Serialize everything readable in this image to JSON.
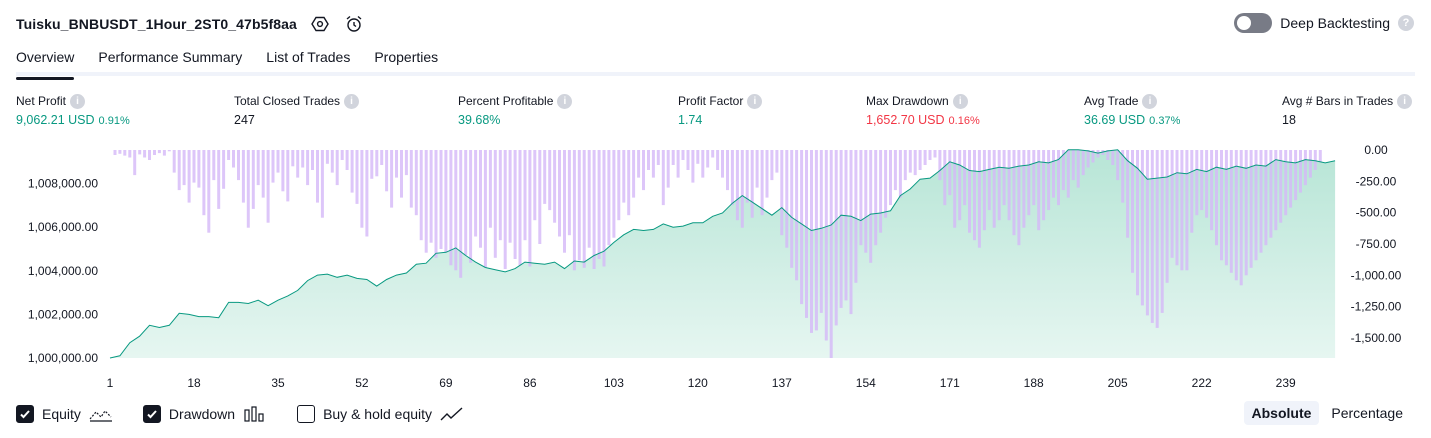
{
  "header": {
    "strategy_name": "Tuisku_BNBUSDT_1Hour_2ST0_47b5f8aa",
    "settings_icon": "settings-hex-icon",
    "alert_icon": "alarm-clock-add-icon",
    "deep_backtesting_label": "Deep Backtesting",
    "deep_backtesting_enabled": false,
    "help_glyph": "?"
  },
  "tabs": [
    {
      "label": "Overview",
      "active": true
    },
    {
      "label": "Performance Summary",
      "active": false
    },
    {
      "label": "List of Trades",
      "active": false
    },
    {
      "label": "Properties",
      "active": false
    }
  ],
  "metrics": [
    {
      "label": "Net Profit",
      "value": "9,062.21 USD",
      "sub": "0.91%",
      "tone": "pos"
    },
    {
      "label": "Total Closed Trades",
      "value": "247",
      "sub": "",
      "tone": "neu"
    },
    {
      "label": "Percent Profitable",
      "value": "39.68%",
      "sub": "",
      "tone": "pos"
    },
    {
      "label": "Profit Factor",
      "value": "1.74",
      "sub": "",
      "tone": "pos"
    },
    {
      "label": "Max Drawdown",
      "value": "1,652.70 USD",
      "sub": "0.16%",
      "tone": "neg"
    },
    {
      "label": "Avg Trade",
      "value": "36.69 USD",
      "sub": "0.37%",
      "tone": "pos"
    },
    {
      "label": "Avg # Bars in Trades",
      "value": "18",
      "sub": "",
      "tone": "neu"
    }
  ],
  "info_glyph": "i",
  "colors": {
    "equity_line": "#089981",
    "equity_fill": "#cfeee4",
    "drawdown_bar": "#d4b8f7",
    "positive": "#089981",
    "negative": "#f23645"
  },
  "chart_data": {
    "type": "area",
    "x_ticks": [
      "1",
      "18",
      "35",
      "52",
      "69",
      "86",
      "103",
      "120",
      "137",
      "154",
      "171",
      "188",
      "205",
      "222",
      "239"
    ],
    "x_range": [
      1,
      250
    ],
    "left_axis": {
      "ticks": [
        "1,008,000.00",
        "1,006,000.00",
        "1,004,000.00",
        "1,002,000.00",
        "1,000,000.00"
      ],
      "tick_values": [
        1008000,
        1006000,
        1004000,
        1002000,
        1000000
      ],
      "range": [
        1000000,
        1009540
      ]
    },
    "right_axis": {
      "ticks": [
        "0.00",
        "-250.00",
        "-500.00",
        "-750.00",
        "-1,000.00",
        "-1,250.00",
        "-1,500.00"
      ],
      "tick_values": [
        0,
        -250,
        -500,
        -750,
        -1000,
        -1250,
        -1500
      ],
      "range": [
        -1660,
        0
      ]
    },
    "series": [
      {
        "name": "Equity",
        "type": "area",
        "points": [
          [
            1,
            1000000
          ],
          [
            3,
            1000100
          ],
          [
            5,
            1000700
          ],
          [
            7,
            1001000
          ],
          [
            9,
            1001500
          ],
          [
            11,
            1001400
          ],
          [
            13,
            1001500
          ],
          [
            15,
            1002050
          ],
          [
            17,
            1002000
          ],
          [
            19,
            1001900
          ],
          [
            21,
            1001900
          ],
          [
            23,
            1001850
          ],
          [
            25,
            1002550
          ],
          [
            27,
            1002550
          ],
          [
            29,
            1002500
          ],
          [
            31,
            1002650
          ],
          [
            33,
            1002400
          ],
          [
            35,
            1002650
          ],
          [
            37,
            1002850
          ],
          [
            39,
            1003100
          ],
          [
            41,
            1003550
          ],
          [
            43,
            1003800
          ],
          [
            45,
            1003850
          ],
          [
            47,
            1003700
          ],
          [
            49,
            1003800
          ],
          [
            51,
            1003650
          ],
          [
            53,
            1003600
          ],
          [
            55,
            1003300
          ],
          [
            57,
            1003600
          ],
          [
            59,
            1003800
          ],
          [
            61,
            1003900
          ],
          [
            63,
            1004300
          ],
          [
            65,
            1004350
          ],
          [
            67,
            1004800
          ],
          [
            69,
            1004850
          ],
          [
            71,
            1005050
          ],
          [
            73,
            1004700
          ],
          [
            75,
            1004400
          ],
          [
            77,
            1004150
          ],
          [
            79,
            1004050
          ],
          [
            81,
            1003950
          ],
          [
            83,
            1004100
          ],
          [
            85,
            1004400
          ],
          [
            87,
            1004350
          ],
          [
            89,
            1004300
          ],
          [
            91,
            1004400
          ],
          [
            93,
            1004100
          ],
          [
            95,
            1004450
          ],
          [
            97,
            1004400
          ],
          [
            99,
            1004700
          ],
          [
            101,
            1004900
          ],
          [
            103,
            1005300
          ],
          [
            105,
            1005650
          ],
          [
            107,
            1005900
          ],
          [
            109,
            1005850
          ],
          [
            111,
            1005900
          ],
          [
            113,
            1006150
          ],
          [
            115,
            1006000
          ],
          [
            117,
            1006050
          ],
          [
            119,
            1006200
          ],
          [
            121,
            1006200
          ],
          [
            123,
            1006500
          ],
          [
            125,
            1006650
          ],
          [
            127,
            1007100
          ],
          [
            129,
            1007450
          ],
          [
            131,
            1007150
          ],
          [
            133,
            1006850
          ],
          [
            135,
            1006550
          ],
          [
            137,
            1006900
          ],
          [
            139,
            1006450
          ],
          [
            141,
            1006150
          ],
          [
            143,
            1005850
          ],
          [
            145,
            1005950
          ],
          [
            147,
            1006100
          ],
          [
            149,
            1006550
          ],
          [
            151,
            1006500
          ],
          [
            153,
            1006300
          ],
          [
            155,
            1006600
          ],
          [
            157,
            1006650
          ],
          [
            159,
            1006750
          ],
          [
            161,
            1007450
          ],
          [
            163,
            1007750
          ],
          [
            165,
            1008200
          ],
          [
            167,
            1008250
          ],
          [
            169,
            1008600
          ],
          [
            171,
            1009000
          ],
          [
            173,
            1008850
          ],
          [
            175,
            1008600
          ],
          [
            177,
            1008550
          ],
          [
            179,
            1008650
          ],
          [
            181,
            1008750
          ],
          [
            183,
            1008700
          ],
          [
            185,
            1008800
          ],
          [
            187,
            1008850
          ],
          [
            189,
            1009000
          ],
          [
            191,
            1008950
          ],
          [
            193,
            1009100
          ],
          [
            195,
            1009550
          ],
          [
            197,
            1009550
          ],
          [
            199,
            1009500
          ],
          [
            201,
            1009400
          ],
          [
            203,
            1009500
          ],
          [
            205,
            1009550
          ],
          [
            207,
            1009050
          ],
          [
            209,
            1008700
          ],
          [
            211,
            1008200
          ],
          [
            213,
            1008250
          ],
          [
            215,
            1008300
          ],
          [
            217,
            1008500
          ],
          [
            219,
            1008450
          ],
          [
            221,
            1008650
          ],
          [
            223,
            1008550
          ],
          [
            225,
            1008750
          ],
          [
            227,
            1008650
          ],
          [
            229,
            1008800
          ],
          [
            231,
            1008700
          ],
          [
            233,
            1008850
          ],
          [
            235,
            1008800
          ],
          [
            237,
            1009100
          ],
          [
            239,
            1009000
          ],
          [
            241,
            1008950
          ],
          [
            243,
            1009100
          ],
          [
            245,
            1009050
          ],
          [
            247,
            1008950
          ],
          [
            249,
            1009050
          ]
        ]
      },
      {
        "name": "Drawdown",
        "type": "bar",
        "x_start": 1,
        "values": [
          0,
          -40,
          -30,
          -45,
          -60,
          -200,
          -35,
          -60,
          -80,
          -40,
          -25,
          -45,
          -10,
          -180,
          -320,
          -280,
          -420,
          -260,
          -300,
          -520,
          -660,
          -240,
          -470,
          -310,
          -80,
          -140,
          -240,
          -420,
          -620,
          -470,
          -280,
          -380,
          -580,
          -260,
          -180,
          -330,
          -410,
          -130,
          -220,
          -140,
          -280,
          -160,
          -420,
          -540,
          -110,
          -180,
          -280,
          -80,
          -160,
          -340,
          -430,
          -620,
          -690,
          -230,
          -210,
          -120,
          -330,
          -460,
          -220,
          -380,
          -200,
          -460,
          -520,
          -720,
          -820,
          -740,
          -860,
          -790,
          -820,
          -920,
          -960,
          -1020,
          -840,
          -900,
          -690,
          -780,
          -940,
          -620,
          -860,
          -720,
          -950,
          -740,
          -870,
          -920,
          -720,
          -930,
          -560,
          -750,
          -430,
          -480,
          -580,
          -690,
          -820,
          -680,
          -960,
          -880,
          -940,
          -780,
          -950,
          -870,
          -930,
          -760,
          -700,
          -560,
          -420,
          -520,
          -380,
          -220,
          -320,
          -160,
          -220,
          -120,
          -440,
          -300,
          -120,
          -220,
          -80,
          -160,
          -260,
          -110,
          -220,
          -140,
          -60,
          -160,
          -220,
          -320,
          -440,
          -560,
          -620,
          -420,
          -540,
          -300,
          -520,
          -380,
          -240,
          -180,
          -680,
          -780,
          -940,
          -1040,
          -1230,
          -1340,
          -1460,
          -1440,
          -1300,
          -1520,
          -1660,
          -1400,
          -1260,
          -1200,
          -1310,
          -1060,
          -760,
          -820,
          -900,
          -760,
          -660,
          -540,
          -440,
          -320,
          -380,
          -240,
          -180,
          -200,
          -160,
          -120,
          -80,
          -60,
          -240,
          -440,
          -360,
          -620,
          -560,
          -440,
          -660,
          -720,
          -780,
          -640,
          -480,
          -620,
          -560,
          -440,
          -560,
          -680,
          -760,
          -620,
          -520,
          -440,
          -640,
          -560,
          -480,
          -380,
          -440,
          -320,
          -380,
          -240,
          -300,
          -200,
          -140,
          -100,
          -60,
          -40,
          -80,
          -120,
          -240,
          -420,
          -700,
          -980,
          -1160,
          -1240,
          -1320,
          -1380,
          -1420,
          -1300,
          -1060,
          -860,
          -920,
          -960,
          -960,
          -660,
          -520,
          -480,
          -540,
          -640,
          -760,
          -880,
          -920,
          -980,
          -1040,
          -1080,
          -1000,
          -940,
          -880,
          -820,
          -760,
          -700,
          -640,
          -580,
          -520,
          -460,
          -400,
          -340,
          -280,
          -220,
          -160,
          -100
        ]
      }
    ],
    "legend": [
      "Equity",
      "Drawdown",
      "Buy & hold equity"
    ],
    "grid": false
  },
  "footer": {
    "equity_label": "Equity",
    "equity_checked": true,
    "drawdown_label": "Drawdown",
    "drawdown_checked": true,
    "buyhold_label": "Buy & hold equity",
    "buyhold_checked": false,
    "absolute_label": "Absolute",
    "percentage_label": "Percentage",
    "active_mode": "Absolute"
  }
}
